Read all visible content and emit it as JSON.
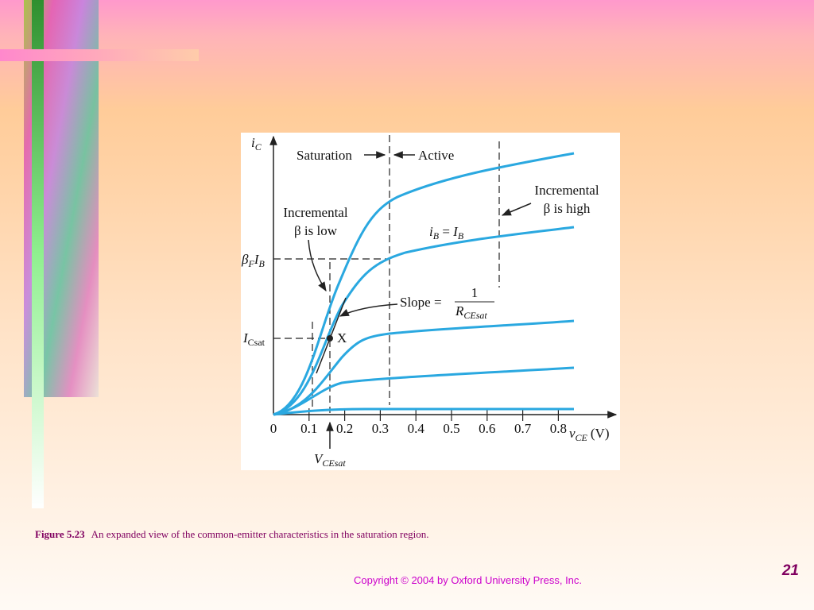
{
  "figure": {
    "y_axis_label": {
      "main": "i",
      "sub": "C"
    },
    "x_axis_label": {
      "main": "v",
      "sub": "CE",
      "unit": "(V)"
    },
    "x_ticks": [
      "0",
      "0.1",
      "0.2",
      "0.3",
      "0.4",
      "0.5",
      "0.6",
      "0.7",
      "0.8"
    ],
    "saturation": "Saturation",
    "active": "Active",
    "low_note": [
      "Incremental",
      "β is low"
    ],
    "high_note": [
      "Incremental",
      "β is high"
    ],
    "curve_label": {
      "lhs": "i",
      "lhs_sub": "B",
      "eq": " = ",
      "rhs": "I",
      "rhs_sub": "B"
    },
    "slope": {
      "text": "Slope =",
      "num": "1",
      "den": "R",
      "den_sub": "CEsat"
    },
    "beta_label": {
      "beta": "β",
      "beta_sub": "F",
      "i": "I",
      "i_sub": "B"
    },
    "icsat_label": {
      "main": "I",
      "sub": "Csat"
    },
    "point": "X",
    "vcesat_label": {
      "main": "V",
      "sub": "CEsat"
    }
  },
  "caption": {
    "label": "Figure 5.23",
    "text": "An expanded view of the common-emitter characteristics in the saturation region."
  },
  "copyright": "Copyright © 2004 by Oxford University Press, Inc.",
  "page_number": "21"
}
